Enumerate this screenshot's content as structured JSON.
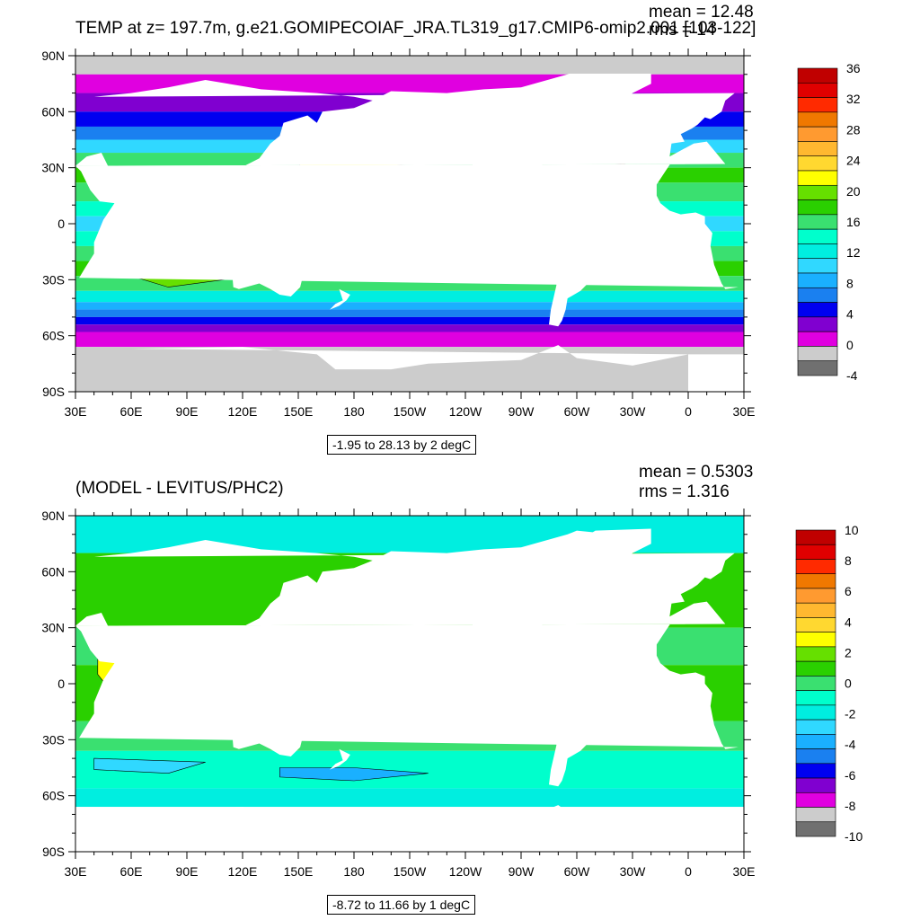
{
  "panels": [
    {
      "id": "top",
      "title": "TEMP at z= 197.7m, g.e21.GOMIPECOIAF_JRA.TL319_g17.CMIP6-omip2.001 [103-122]",
      "mean_text": "mean = 12.48",
      "rms_text": "rms = 14",
      "range_text": "-1.95 to 28.13 by 2 degC",
      "colorbar": {
        "labels": [
          "36",
          "32",
          "28",
          "24",
          "20",
          "16",
          "12",
          "8",
          "4",
          "0",
          "-4"
        ],
        "colors": [
          "#c00000",
          "#e00000",
          "#ff2a00",
          "#f07800",
          "#ff9a30",
          "#ffb830",
          "#ffd830",
          "#ffff00",
          "#66e000",
          "#2ad000",
          "#3ae070",
          "#00ffcc",
          "#00eee0",
          "#30d8ff",
          "#1ab0ff",
          "#1a80f0",
          "#0000f0",
          "#8000d0",
          "#e000e0",
          "#cccccc",
          "#707070"
        ]
      },
      "palette": [
        "#707070",
        "#cccccc",
        "#e000e0",
        "#8000d0",
        "#0000f0",
        "#1a80f0",
        "#1ab0ff",
        "#30d8ff",
        "#00eee0",
        "#00ffcc",
        "#3ae070",
        "#2ad000",
        "#66e000",
        "#ffff00",
        "#ffd830",
        "#ffb830",
        "#ff9a30",
        "#f07800",
        "#ff2a00",
        "#e00000",
        "#c00000"
      ]
    },
    {
      "id": "bottom",
      "title": "(MODEL - LEVITUS/PHC2)",
      "mean_text": "mean = 0.5303",
      "rms_text": "rms = 1.316",
      "range_text": "-8.72 to 11.66 by 1 degC",
      "colorbar": {
        "labels": [
          "10",
          "8",
          "6",
          "4",
          "2",
          "0",
          "-2",
          "-4",
          "-6",
          "-8",
          "-10"
        ],
        "colors": [
          "#c00000",
          "#e00000",
          "#ff2a00",
          "#f07800",
          "#ff9a30",
          "#ffb830",
          "#ffd830",
          "#ffff00",
          "#66e000",
          "#2ad000",
          "#3ae070",
          "#00ffcc",
          "#00eee0",
          "#30d8ff",
          "#1ab0ff",
          "#1a80f0",
          "#0000f0",
          "#8000d0",
          "#e000e0",
          "#cccccc",
          "#707070"
        ]
      }
    }
  ],
  "axes": {
    "lat_labels": [
      "90N",
      "60N",
      "30N",
      "0",
      "30S",
      "60S",
      "90S"
    ],
    "lon_labels": [
      "30E",
      "60E",
      "90E",
      "120E",
      "150E",
      "180",
      "150W",
      "120W",
      "90W",
      "60W",
      "30W",
      "0",
      "30E"
    ]
  },
  "colors": {
    "land": "#ffffff",
    "ice": "#cccccc",
    "frame": "#000000"
  }
}
